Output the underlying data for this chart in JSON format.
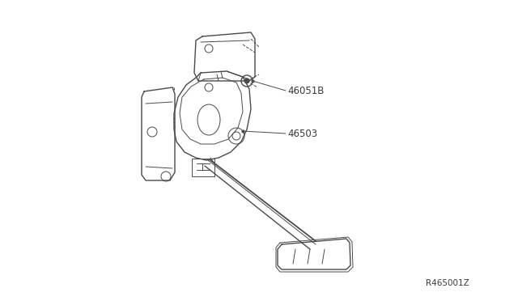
{
  "background_color": "#ffffff",
  "line_color": "#4a4a4a",
  "label_color": "#3a3a3a",
  "ref_text": "R465001Z",
  "label_46051B": "46051B",
  "label_46503": "46503",
  "figsize": [
    6.4,
    3.72
  ],
  "dpi": 100
}
